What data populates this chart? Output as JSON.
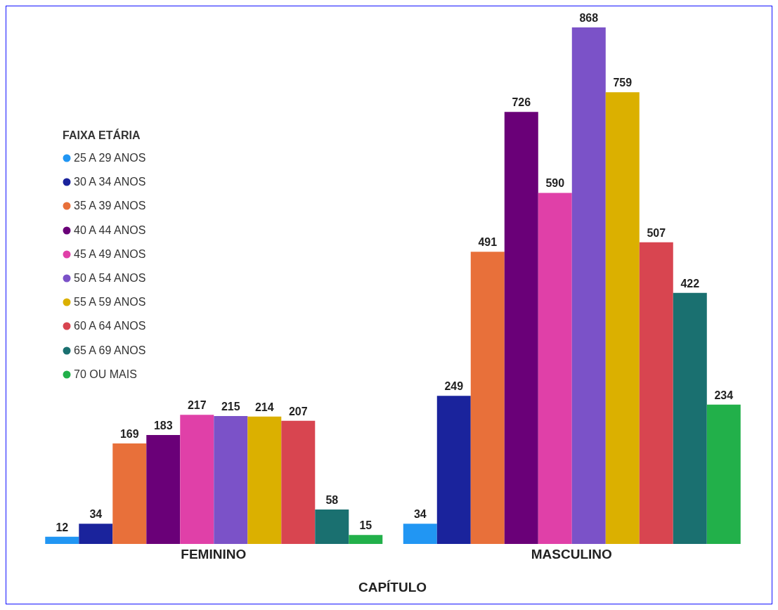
{
  "chart_data": {
    "type": "bar",
    "xlabel": "CAPÍTULO",
    "legend_title": "FAIXA ETÁRIA",
    "legend": "top left",
    "data_labels": true,
    "categories": [
      "FEMININO",
      "MASCULINO"
    ],
    "series": [
      {
        "name": "25 A 29 ANOS",
        "color": "#2196f3",
        "values": [
          12,
          34
        ]
      },
      {
        "name": "30 A 34 ANOS",
        "color": "#1a239c",
        "values": [
          34,
          249
        ]
      },
      {
        "name": "35 A 39 ANOS",
        "color": "#e8703a",
        "values": [
          169,
          491
        ]
      },
      {
        "name": "40 A 44 ANOS",
        "color": "#6a0078",
        "values": [
          183,
          726
        ]
      },
      {
        "name": "45 A 49 ANOS",
        "color": "#e040a8",
        "values": [
          217,
          590
        ]
      },
      {
        "name": "50 A 54 ANOS",
        "color": "#7b52c8",
        "values": [
          215,
          868
        ]
      },
      {
        "name": "55 A 59 ANOS",
        "color": "#dbb000",
        "values": [
          214,
          759
        ]
      },
      {
        "name": "60 A 64 ANOS",
        "color": "#d84550",
        "values": [
          207,
          507
        ]
      },
      {
        "name": "65 A 69 ANOS",
        "color": "#1a7070",
        "values": [
          58,
          422
        ]
      },
      {
        "name": "70 OU MAIS",
        "color": "#22b04a",
        "values": [
          15,
          234
        ]
      }
    ]
  }
}
